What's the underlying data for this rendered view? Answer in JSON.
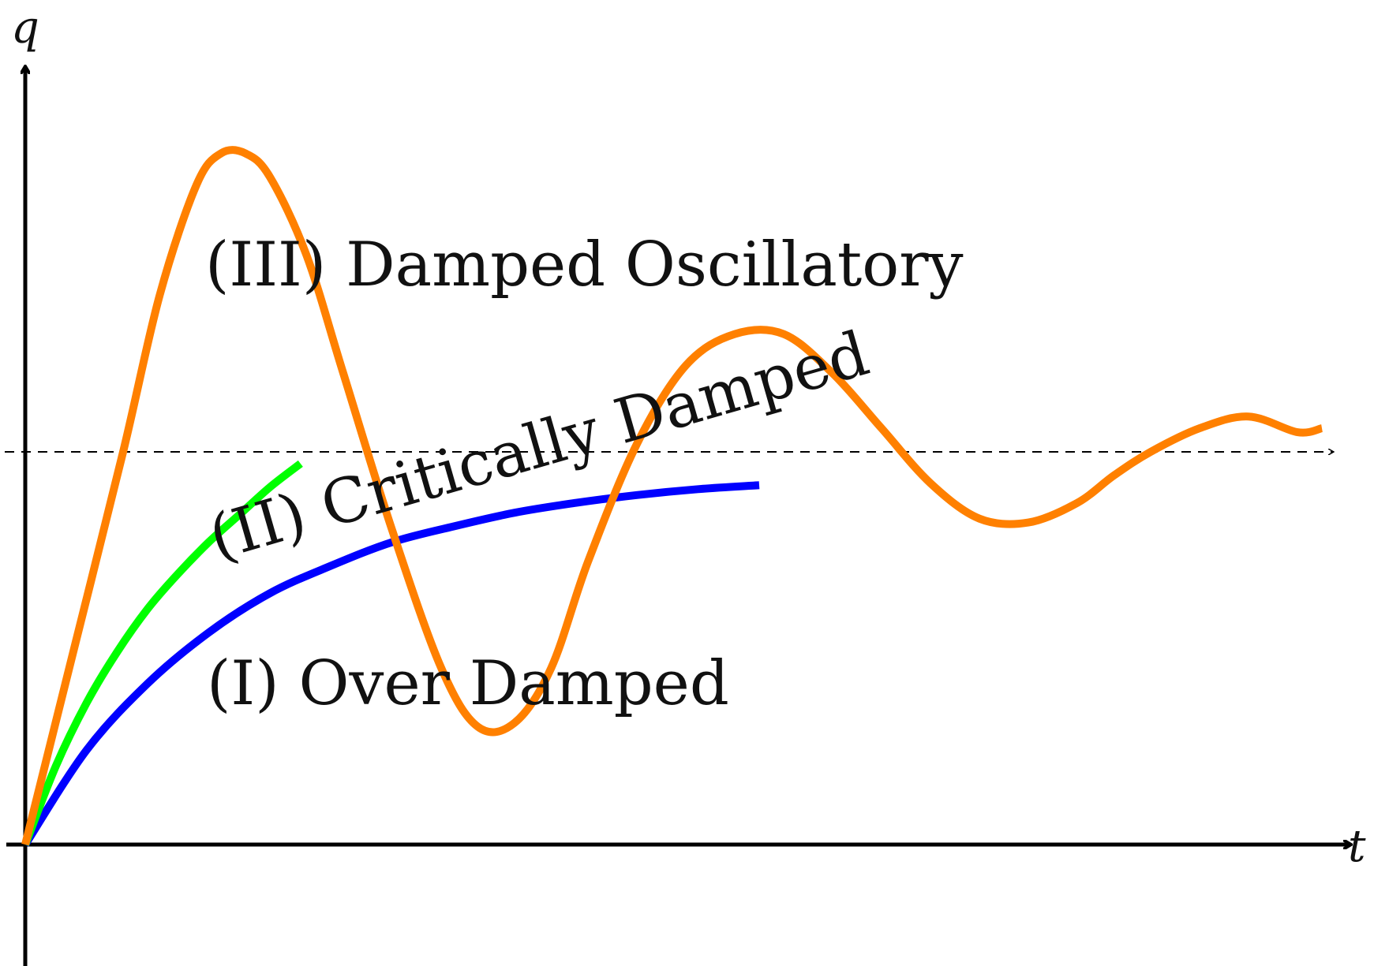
{
  "chart_data": {
    "type": "line",
    "xlabel": "t",
    "ylabel": "q",
    "xlim": [
      0,
      11
    ],
    "ylim": [
      -0.3,
      2.05
    ],
    "grid": false,
    "reference_line": {
      "y": 1.0,
      "style": "dashed",
      "color": "#000000"
    },
    "series": [
      {
        "name": "(I) Over Damped",
        "color": "#0000ff",
        "x": [
          0,
          0.5,
          1,
          1.5,
          2,
          2.5,
          3,
          3.5,
          4,
          4.5,
          5,
          5.5,
          6
        ],
        "y": [
          0,
          0.24,
          0.41,
          0.54,
          0.64,
          0.71,
          0.77,
          0.81,
          0.845,
          0.87,
          0.89,
          0.905,
          0.915
        ]
      },
      {
        "name": "(II) Critically Damped",
        "color": "#00ff00",
        "x": [
          0,
          0.25,
          0.5,
          0.75,
          1,
          1.25,
          1.5,
          1.75,
          2,
          2.25
        ],
        "y": [
          0,
          0.2,
          0.36,
          0.49,
          0.6,
          0.69,
          0.77,
          0.84,
          0.91,
          0.97
        ]
      },
      {
        "name": "(III) Damped Oscillatory",
        "color": "#ff8000",
        "x": [
          0,
          0.4,
          0.8,
          1.1,
          1.4,
          1.6,
          1.8,
          2.0,
          2.3,
          2.6,
          3.0,
          3.4,
          3.7,
          4.0,
          4.3,
          4.6,
          5.0,
          5.4,
          5.8,
          6.2,
          6.6,
          7.0,
          7.4,
          7.8,
          8.2,
          8.6,
          8.9,
          9.2,
          9.6,
          10.0,
          10.4,
          10.6
        ],
        "y": [
          0,
          0.5,
          1.0,
          1.4,
          1.68,
          1.76,
          1.76,
          1.7,
          1.5,
          1.2,
          0.8,
          0.45,
          0.3,
          0.31,
          0.45,
          0.72,
          1.02,
          1.22,
          1.3,
          1.3,
          1.2,
          1.06,
          0.92,
          0.83,
          0.82,
          0.87,
          0.94,
          1.0,
          1.06,
          1.09,
          1.05,
          1.06
        ]
      }
    ],
    "annotations": [
      {
        "text": "(III) Damped Oscillatory"
      },
      {
        "text": "(II) Critically Damped"
      },
      {
        "text": "(I) Over Damped"
      }
    ]
  }
}
